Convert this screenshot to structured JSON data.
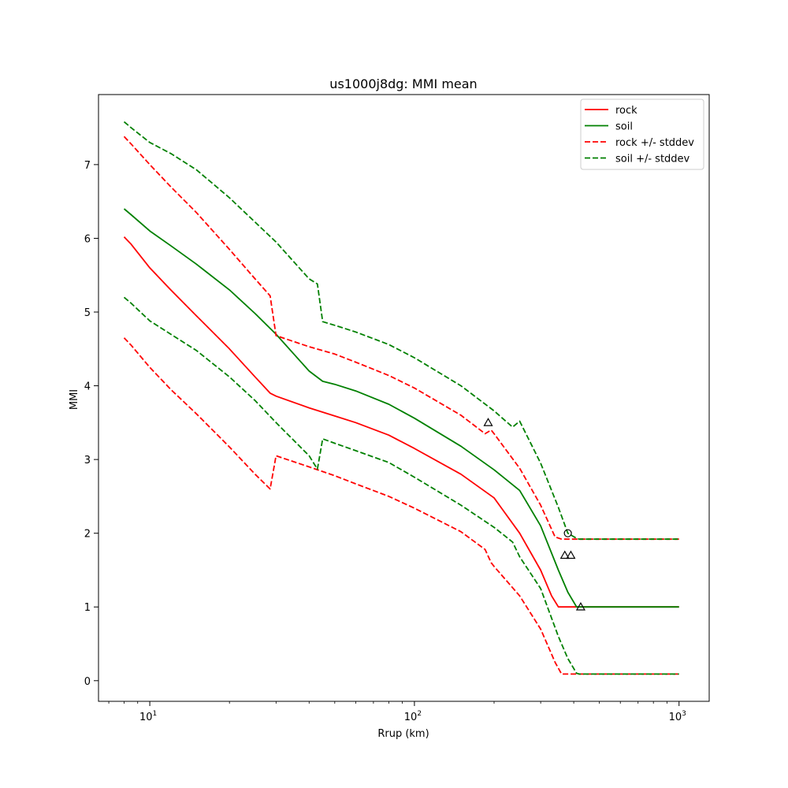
{
  "chart_data": {
    "type": "line",
    "title": "us1000j8dg: MMI mean",
    "xlabel": "Rrup (km)",
    "ylabel": "MMI",
    "xscale": "log",
    "xlim": [
      6.4,
      1300
    ],
    "ylim": [
      -0.28,
      7.95
    ],
    "grid": false,
    "legend_position": "top-right",
    "x_ticks": [
      {
        "value": 10,
        "base": "10",
        "exp": "1"
      },
      {
        "value": 100,
        "base": "10",
        "exp": "2"
      },
      {
        "value": 1000,
        "base": "10",
        "exp": "3"
      }
    ],
    "y_ticks": [
      0,
      1,
      2,
      3,
      4,
      5,
      6,
      7
    ],
    "series": [
      {
        "name": "rock",
        "color": "#ff0000",
        "style": "solid",
        "x": [
          8,
          8.5,
          10,
          12,
          15,
          20,
          25,
          28.5,
          30,
          40,
          50,
          60,
          80,
          100,
          150,
          200,
          250,
          300,
          330,
          350,
          360,
          400,
          500,
          1000
        ],
        "y": [
          6.02,
          5.92,
          5.6,
          5.3,
          4.95,
          4.5,
          4.12,
          3.9,
          3.86,
          3.7,
          3.59,
          3.5,
          3.33,
          3.15,
          2.8,
          2.48,
          2.0,
          1.5,
          1.15,
          1.0,
          1.0,
          1.0,
          1.0,
          1.0
        ]
      },
      {
        "name": "soil",
        "color": "#008000",
        "style": "solid",
        "x": [
          8,
          8.5,
          10,
          12,
          15,
          20,
          25,
          30,
          40,
          45,
          50,
          60,
          80,
          100,
          150,
          200,
          250,
          300,
          350,
          380,
          410,
          420,
          500,
          1000
        ],
        "y": [
          6.4,
          6.32,
          6.1,
          5.9,
          5.65,
          5.3,
          4.98,
          4.7,
          4.2,
          4.06,
          4.02,
          3.93,
          3.75,
          3.56,
          3.18,
          2.86,
          2.58,
          2.1,
          1.5,
          1.2,
          1.0,
          1.0,
          1.0,
          1.0
        ]
      },
      {
        "name": "rock +/- stddev",
        "color": "#ff0000",
        "style": "dashed",
        "x": [
          8,
          8.5,
          10,
          12,
          15,
          20,
          25,
          28.5,
          30,
          40,
          50,
          60,
          80,
          100,
          150,
          185,
          195,
          200,
          250,
          300,
          340,
          360,
          400,
          500,
          1000
        ],
        "y": [
          7.38,
          7.28,
          7.0,
          6.7,
          6.35,
          5.85,
          5.45,
          5.22,
          4.68,
          4.53,
          4.43,
          4.32,
          4.14,
          3.97,
          3.6,
          3.35,
          3.4,
          3.35,
          2.88,
          2.38,
          1.95,
          1.92,
          1.92,
          1.92,
          1.92
        ]
      },
      {
        "name": "rock +/- stddev (lower)",
        "color": "#ff0000",
        "style": "dashed",
        "x": [
          8,
          8.5,
          10,
          12,
          15,
          20,
          25,
          28.5,
          30,
          40,
          50,
          60,
          80,
          100,
          150,
          185,
          195,
          200,
          250,
          300,
          340,
          360,
          400,
          500,
          1000
        ],
        "y": [
          4.65,
          4.55,
          4.25,
          3.95,
          3.62,
          3.17,
          2.8,
          2.6,
          3.05,
          2.9,
          2.78,
          2.67,
          2.5,
          2.34,
          2.02,
          1.78,
          1.6,
          1.55,
          1.15,
          0.7,
          0.25,
          0.09,
          0.09,
          0.09,
          0.09
        ]
      },
      {
        "name": "soil +/- stddev",
        "color": "#008000",
        "style": "dashed",
        "x": [
          8,
          8.5,
          10,
          12,
          15,
          20,
          25,
          30,
          40,
          43,
          45,
          50,
          60,
          80,
          100,
          150,
          200,
          235,
          250,
          300,
          350,
          380,
          410,
          420,
          500,
          1000
        ],
        "y": [
          7.58,
          7.5,
          7.3,
          7.15,
          6.93,
          6.55,
          6.22,
          5.95,
          5.45,
          5.38,
          4.87,
          4.82,
          4.73,
          4.56,
          4.38,
          4.0,
          3.66,
          3.44,
          3.52,
          2.95,
          2.35,
          2.0,
          1.93,
          1.92,
          1.92,
          1.92
        ]
      },
      {
        "name": "soil +/- stddev (lower)",
        "color": "#008000",
        "style": "dashed",
        "x": [
          8,
          8.5,
          10,
          12,
          15,
          20,
          25,
          30,
          40,
          43,
          45,
          50,
          60,
          80,
          100,
          150,
          200,
          235,
          250,
          300,
          350,
          380,
          410,
          420,
          500,
          1000
        ],
        "y": [
          5.2,
          5.12,
          4.88,
          4.7,
          4.48,
          4.12,
          3.8,
          3.5,
          3.05,
          2.87,
          3.28,
          3.22,
          3.12,
          2.96,
          2.76,
          2.38,
          2.08,
          1.88,
          1.68,
          1.25,
          0.6,
          0.3,
          0.1,
          0.09,
          0.09,
          0.09
        ]
      }
    ],
    "legend": [
      {
        "label": "rock",
        "color": "#ff0000",
        "style": "solid"
      },
      {
        "label": "soil",
        "color": "#008000",
        "style": "solid"
      },
      {
        "label": "rock +/- stddev",
        "color": "#ff0000",
        "style": "dashed"
      },
      {
        "label": "soil +/- stddev",
        "color": "#008000",
        "style": "dashed"
      }
    ],
    "markers": [
      {
        "shape": "triangle",
        "x": 190,
        "y": 3.5
      },
      {
        "shape": "circle",
        "x": 380,
        "y": 2.0
      },
      {
        "shape": "triangle",
        "x": 370,
        "y": 1.7
      },
      {
        "shape": "triangle",
        "x": 390,
        "y": 1.7
      },
      {
        "shape": "triangle",
        "x": 425,
        "y": 1.0
      }
    ]
  }
}
